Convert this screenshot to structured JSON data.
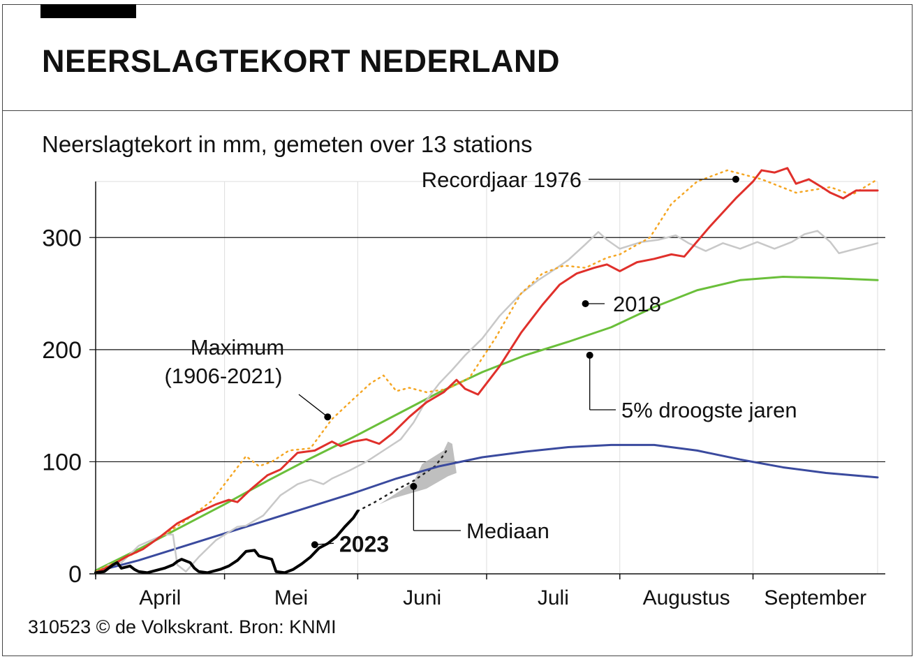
{
  "header": {
    "title": "NEERSLAGTEKORT NEDERLAND",
    "subtitle": "Neerslagtekort in mm, gemeten over 13 stations"
  },
  "footer": {
    "credit": "310523 © de Volkskrant. Bron: KNMI"
  },
  "colors": {
    "record1976": "#e0302b",
    "maximum": "#f5a623",
    "y2018": "#c8c8c8",
    "droogste5": "#6abf3a",
    "mediaan": "#3a4a9e",
    "y2023": "#000000",
    "forecast": "#b4b4b4"
  },
  "chart_data": {
    "type": "line",
    "xunit": "day of year",
    "xlim": [
      91,
      273
    ],
    "ylim": [
      0,
      350
    ],
    "yticks": [
      {
        "value": 0,
        "label": "0"
      },
      {
        "value": 100,
        "label": "100"
      },
      {
        "value": 200,
        "label": "200"
      },
      {
        "value": 300,
        "label": "300"
      }
    ],
    "months": [
      {
        "label": "April",
        "start": 91,
        "end": 121
      },
      {
        "label": "Mei",
        "start": 121,
        "end": 152
      },
      {
        "label": "Juni",
        "start": 152,
        "end": 182
      },
      {
        "label": "Juli",
        "start": 182,
        "end": 213
      },
      {
        "label": "Augustus",
        "start": 213,
        "end": 244
      },
      {
        "label": "September",
        "start": 244,
        "end": 273
      }
    ],
    "series": [
      {
        "key": "maximum",
        "name": "Maximum (1906-2021)",
        "label_lines": [
          "Maximum",
          "(1906-2021)"
        ],
        "style": "dotted",
        "points": [
          [
            91,
            2
          ],
          [
            101,
            20
          ],
          [
            111,
            45
          ],
          [
            118,
            65
          ],
          [
            126,
            105
          ],
          [
            129,
            96
          ],
          [
            132,
            100
          ],
          [
            136,
            110
          ],
          [
            141,
            112
          ],
          [
            146,
            138
          ],
          [
            151,
            156
          ],
          [
            155,
            170
          ],
          [
            158,
            177
          ],
          [
            161,
            163
          ],
          [
            164,
            166
          ],
          [
            168,
            162
          ],
          [
            173,
            165
          ],
          [
            178,
            175
          ],
          [
            184,
            210
          ],
          [
            190,
            250
          ],
          [
            195,
            268
          ],
          [
            200,
            275
          ],
          [
            205,
            273
          ],
          [
            210,
            282
          ],
          [
            213,
            285
          ],
          [
            220,
            300
          ],
          [
            225,
            330
          ],
          [
            231,
            350
          ],
          [
            238,
            360
          ],
          [
            246,
            352
          ],
          [
            254,
            340
          ],
          [
            262,
            345
          ],
          [
            267,
            338
          ],
          [
            273,
            352
          ]
        ]
      },
      {
        "key": "record1976",
        "name": "Recordjaar 1976",
        "style": "solid",
        "points": [
          [
            91,
            1
          ],
          [
            95,
            8
          ],
          [
            98,
            15
          ],
          [
            102,
            22
          ],
          [
            106,
            33
          ],
          [
            110,
            45
          ],
          [
            115,
            55
          ],
          [
            119,
            62
          ],
          [
            122,
            66
          ],
          [
            124,
            64
          ],
          [
            127,
            75
          ],
          [
            131,
            88
          ],
          [
            134,
            93
          ],
          [
            138,
            108
          ],
          [
            142,
            110
          ],
          [
            146,
            118
          ],
          [
            148,
            114
          ],
          [
            151,
            118
          ],
          [
            154,
            120
          ],
          [
            157,
            116
          ],
          [
            160,
            125
          ],
          [
            164,
            140
          ],
          [
            168,
            153
          ],
          [
            172,
            162
          ],
          [
            175,
            173
          ],
          [
            177,
            165
          ],
          [
            180,
            160
          ],
          [
            185,
            185
          ],
          [
            190,
            215
          ],
          [
            195,
            240
          ],
          [
            199,
            258
          ],
          [
            203,
            268
          ],
          [
            207,
            273
          ],
          [
            210,
            276
          ],
          [
            213,
            270
          ],
          [
            217,
            278
          ],
          [
            221,
            281
          ],
          [
            225,
            285
          ],
          [
            228,
            283
          ],
          [
            234,
            310
          ],
          [
            240,
            335
          ],
          [
            244,
            350
          ],
          [
            246,
            360
          ],
          [
            249,
            358
          ],
          [
            252,
            362
          ],
          [
            254,
            348
          ],
          [
            257,
            352
          ],
          [
            260,
            345
          ],
          [
            262,
            340
          ],
          [
            265,
            335
          ],
          [
            268,
            342
          ],
          [
            273,
            342
          ]
        ]
      },
      {
        "key": "y2018",
        "name": "2018",
        "style": "solid",
        "points": [
          [
            91,
            0
          ],
          [
            94,
            8
          ],
          [
            97,
            10
          ],
          [
            101,
            25
          ],
          [
            104,
            30
          ],
          [
            107,
            35
          ],
          [
            109,
            35
          ],
          [
            110,
            8
          ],
          [
            112,
            2
          ],
          [
            115,
            15
          ],
          [
            119,
            30
          ],
          [
            124,
            42
          ],
          [
            126,
            43
          ],
          [
            130,
            52
          ],
          [
            134,
            70
          ],
          [
            138,
            80
          ],
          [
            141,
            84
          ],
          [
            144,
            80
          ],
          [
            146,
            85
          ],
          [
            150,
            92
          ],
          [
            154,
            100
          ],
          [
            158,
            110
          ],
          [
            162,
            120
          ],
          [
            165,
            135
          ],
          [
            168,
            155
          ],
          [
            171,
            170
          ],
          [
            174,
            182
          ],
          [
            177,
            195
          ],
          [
            181,
            210
          ],
          [
            185,
            230
          ],
          [
            190,
            250
          ],
          [
            194,
            262
          ],
          [
            198,
            272
          ],
          [
            201,
            280
          ],
          [
            205,
            294
          ],
          [
            208,
            305
          ],
          [
            210,
            298
          ],
          [
            213,
            290
          ],
          [
            218,
            296
          ],
          [
            222,
            298
          ],
          [
            226,
            302
          ],
          [
            229,
            295
          ],
          [
            233,
            288
          ],
          [
            237,
            295
          ],
          [
            241,
            290
          ],
          [
            245,
            296
          ],
          [
            249,
            290
          ],
          [
            253,
            296
          ],
          [
            256,
            303
          ],
          [
            259,
            306
          ],
          [
            262,
            296
          ],
          [
            264,
            286
          ],
          [
            268,
            290
          ],
          [
            273,
            295
          ]
        ]
      },
      {
        "key": "droogste5",
        "name": "5% droogste jaren",
        "style": "solid",
        "points": [
          [
            91,
            3
          ],
          [
            101,
            22
          ],
          [
            111,
            42
          ],
          [
            121,
            62
          ],
          [
            131,
            83
          ],
          [
            141,
            103
          ],
          [
            151,
            122
          ],
          [
            161,
            142
          ],
          [
            171,
            162
          ],
          [
            181,
            180
          ],
          [
            191,
            195
          ],
          [
            201,
            207
          ],
          [
            211,
            220
          ],
          [
            221,
            238
          ],
          [
            231,
            253
          ],
          [
            241,
            262
          ],
          [
            251,
            265
          ],
          [
            261,
            264
          ],
          [
            273,
            262
          ]
        ]
      },
      {
        "key": "mediaan",
        "name": "Mediaan",
        "style": "solid",
        "points": [
          [
            91,
            2
          ],
          [
            101,
            12
          ],
          [
            111,
            24
          ],
          [
            121,
            36
          ],
          [
            131,
            48
          ],
          [
            141,
            60
          ],
          [
            151,
            72
          ],
          [
            161,
            85
          ],
          [
            171,
            96
          ],
          [
            181,
            104
          ],
          [
            191,
            109
          ],
          [
            201,
            113
          ],
          [
            211,
            115
          ],
          [
            221,
            115
          ],
          [
            231,
            110
          ],
          [
            241,
            102
          ],
          [
            251,
            95
          ],
          [
            261,
            90
          ],
          [
            273,
            86
          ]
        ]
      },
      {
        "key": "y2023",
        "name": "2023",
        "style": "solid",
        "points": [
          [
            91,
            1
          ],
          [
            93,
            2
          ],
          [
            95,
            8
          ],
          [
            96,
            10
          ],
          [
            97,
            5
          ],
          [
            99,
            7
          ],
          [
            100,
            4
          ],
          [
            101,
            2
          ],
          [
            103,
            1
          ],
          [
            105,
            3
          ],
          [
            107,
            5
          ],
          [
            109,
            8
          ],
          [
            110,
            11
          ],
          [
            111,
            13
          ],
          [
            113,
            10
          ],
          [
            114,
            5
          ],
          [
            115,
            2
          ],
          [
            117,
            1
          ],
          [
            119,
            3
          ],
          [
            120,
            4
          ],
          [
            122,
            7
          ],
          [
            124,
            12
          ],
          [
            126,
            20
          ],
          [
            128,
            21
          ],
          [
            129,
            16
          ],
          [
            130,
            15
          ],
          [
            132,
            13
          ],
          [
            133,
            2
          ],
          [
            135,
            1
          ],
          [
            137,
            4
          ],
          [
            139,
            9
          ],
          [
            141,
            15
          ],
          [
            143,
            23
          ],
          [
            145,
            27
          ],
          [
            147,
            33
          ],
          [
            149,
            42
          ],
          [
            151,
            50
          ],
          [
            152,
            56
          ]
        ]
      }
    ],
    "annotations": [
      {
        "key": "record1976",
        "text": "Recordjaar 1976",
        "x": 240,
        "y": 352
      },
      {
        "key": "y2018",
        "text": "2018",
        "x": 205,
        "y": 241
      },
      {
        "key": "maximum",
        "text": "Maximum (1906-2021)",
        "x": 145,
        "y": 140
      },
      {
        "key": "droogste5",
        "text": "5% droogste jaren",
        "x": 206,
        "y": 195
      },
      {
        "key": "mediaan",
        "text": "Mediaan",
        "x": 165,
        "y": 78
      },
      {
        "key": "y2023",
        "text": "2023",
        "x": 142,
        "y": 26
      }
    ],
    "forecast": {
      "dotted": [
        [
          152,
          56
        ],
        [
          156,
          64
        ],
        [
          160,
          73
        ],
        [
          165,
          83
        ],
        [
          170,
          96
        ],
        [
          172,
          106
        ],
        [
          173,
          112
        ]
      ],
      "fan": [
        [
          157,
          62
        ],
        [
          165,
          82
        ],
        [
          167,
          98
        ],
        [
          172,
          110
        ],
        [
          173,
          118
        ],
        [
          174,
          116
        ],
        [
          175,
          90
        ],
        [
          173,
          87
        ],
        [
          168,
          76
        ],
        [
          160,
          67
        ],
        [
          157,
          62
        ]
      ]
    }
  }
}
